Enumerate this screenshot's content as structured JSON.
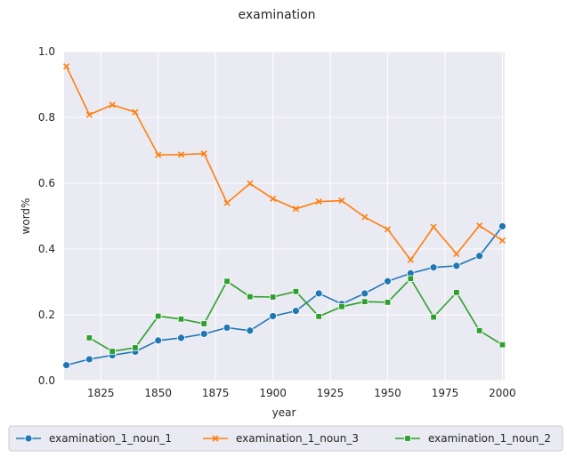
{
  "chart_data": {
    "type": "line",
    "title": "examination",
    "xlabel": "year",
    "ylabel": "word%",
    "xlim": [
      1809,
      2001
    ],
    "ylim": [
      0.0,
      1.0
    ],
    "xticks": [
      1825,
      1850,
      1875,
      1900,
      1925,
      1950,
      1975,
      2000
    ],
    "yticks": [
      0.0,
      0.2,
      0.4,
      0.6,
      0.8,
      1.0
    ],
    "grid": true,
    "legend_position": "bottom",
    "series": [
      {
        "name": "examination_1_noun_1",
        "color": "#1f77b4",
        "marker": "circle",
        "x": [
          1810,
          1820,
          1830,
          1840,
          1850,
          1860,
          1870,
          1880,
          1890,
          1900,
          1910,
          1920,
          1930,
          1940,
          1950,
          1960,
          1970,
          1980,
          1990,
          2000
        ],
        "values": [
          0.047,
          0.065,
          0.077,
          0.088,
          0.122,
          0.13,
          0.142,
          0.161,
          0.152,
          0.196,
          0.212,
          0.265,
          0.233,
          0.265,
          0.302,
          0.326,
          0.344,
          0.349,
          0.379,
          0.469
        ]
      },
      {
        "name": "examination_1_noun_3",
        "color": "#ff7f0e",
        "marker": "x",
        "x": [
          1810,
          1820,
          1830,
          1840,
          1850,
          1860,
          1870,
          1880,
          1890,
          1900,
          1910,
          1920,
          1930,
          1940,
          1950,
          1960,
          1970,
          1980,
          1990,
          2000
        ],
        "values": [
          0.955,
          0.808,
          0.838,
          0.816,
          0.686,
          0.687,
          0.69,
          0.54,
          0.599,
          0.553,
          0.522,
          0.544,
          0.547,
          0.497,
          0.46,
          0.367,
          0.467,
          0.385,
          0.471,
          0.426
        ]
      },
      {
        "name": "examination_1_noun_2",
        "color": "#2ca02c",
        "marker": "square",
        "x": [
          1820,
          1830,
          1840,
          1850,
          1860,
          1870,
          1880,
          1890,
          1900,
          1910,
          1920,
          1930,
          1940,
          1950,
          1960,
          1970,
          1980,
          1990,
          2000
        ],
        "values": [
          0.13,
          0.089,
          0.1,
          0.196,
          0.187,
          0.173,
          0.302,
          0.255,
          0.254,
          0.271,
          0.195,
          0.225,
          0.24,
          0.238,
          0.31,
          0.193,
          0.268,
          0.152,
          0.109
        ]
      }
    ]
  }
}
